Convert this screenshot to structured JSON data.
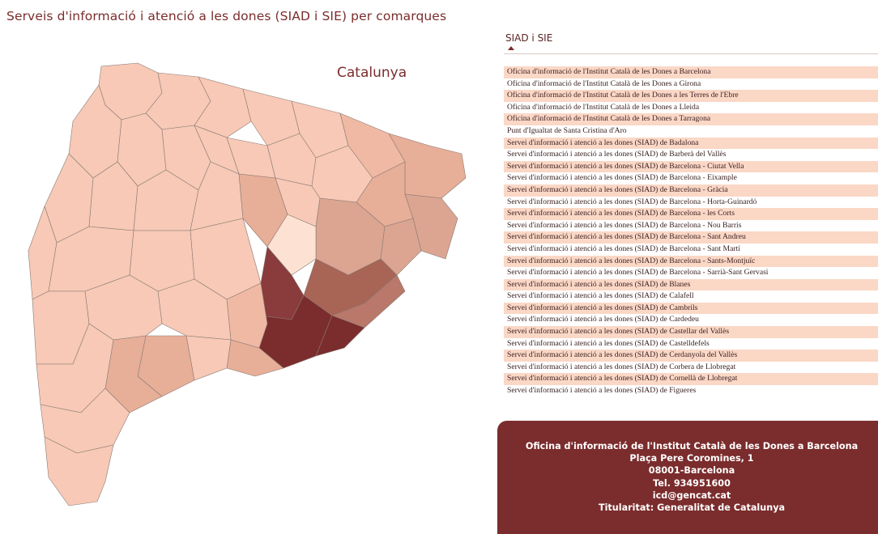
{
  "page": {
    "title": "Serveis d'informació i atenció a les dones (SIAD i SIE) per comarques"
  },
  "map": {
    "label": "Catalunya"
  },
  "colors": {
    "light": "#f7c9b6",
    "lighter": "#fadbcc",
    "medium": "#dba592",
    "strong": "#a86455",
    "dark": "#8a3b3b",
    "darkest": "#7b2c2c",
    "stripe": "#fbd7c6",
    "card_bg": "#7b2c2c"
  },
  "list": {
    "header": "SIAD i SIE",
    "sort_icon": "sort-ascending-icon",
    "items": [
      "Oficina d'informació de l'Institut Català de les Dones a Barcelona",
      "Oficina d'informació de l'Institut Català de les Dones a Girona",
      "Oficina d'informació de l'Institut Català de les Dones a les Terres de l'Ebre",
      "Oficina d'informació de l'Institut Català de les Dones a Lleida",
      "Oficina d'informació de l'Institut Català de les Dones a Tarragona",
      "Punt d'Igualtat de Santa Cristina d'Aro",
      "Servei d'informació i atenció a les dones (SIAD) de Badalona",
      "Servei d'informació i atenció a les dones (SIAD) de Barberà del Vallès",
      "Servei d'informació i atenció a les dones (SIAD) de Barcelona - Ciutat Vella",
      "Servei d'informació i atenció a les dones (SIAD) de Barcelona - Eixample",
      "Servei d'informació i atenció a les dones (SIAD) de Barcelona - Gràcia",
      "Servei d'informació i atenció a les dones (SIAD) de Barcelona - Horta-Guinardó",
      "Servei d'informació i atenció a les dones (SIAD) de Barcelona - les Corts",
      "Servei d'informació i atenció a les dones (SIAD) de Barcelona - Nou Barris",
      "Servei d'informació i atenció a les dones (SIAD) de Barcelona - Sant Andreu",
      "Servei d'informació i atenció a les dones (SIAD) de Barcelona - Sant Martí",
      "Servei d'informació i atenció a les dones (SIAD) de Barcelona - Sants-Montjuïc",
      "Servei d'informació i atenció a les dones (SIAD) de Barcelona - Sarrià-Sant Gervasi",
      "Servei d'informació i atenció a les dones (SIAD) de Blanes",
      "Servei d'informació i atenció a les dones (SIAD) de Calafell",
      "Servei d'informació i atenció a les dones (SIAD) de Cambrils",
      "Servei d'informació i atenció a les dones (SIAD) de Cardedeu",
      "Servei d'informació i atenció a les dones (SIAD) de Castellar del Vallès",
      "Servei d'informació i atenció a les dones (SIAD) de Castelldefels",
      "Servei d'informació i atenció a les dones (SIAD) de Cerdanyola del Vallès",
      "Servei d'informació i atenció a les dones (SIAD) de Corbera de Llobregat",
      "Servei d'informació i atenció a les dones (SIAD) de Cornellà de Llobregat",
      "Servei d'informació i atenció a les dones (SIAD) de Figueres"
    ]
  },
  "card": {
    "name": "Oficina d'informació de l'Institut Català de les Dones a Barcelona",
    "address": "Plaça Pere Coromines, 1",
    "postal": "08001-Barcelona",
    "phone": "Tel. 934951600",
    "email": "icd@gencat.cat",
    "owner": "Titularitat: Generalitat de Catalunya"
  }
}
